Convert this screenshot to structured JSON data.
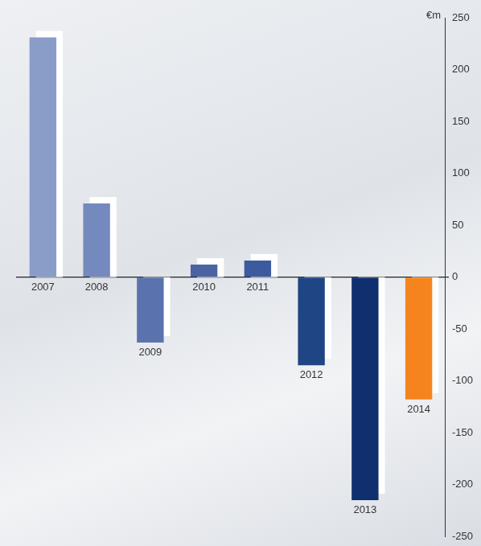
{
  "chart_data": {
    "type": "bar",
    "y_label": "€m",
    "categories": [
      "2007",
      "2008",
      "2009",
      "2010",
      "2011",
      "2012",
      "2013",
      "2014"
    ],
    "values": [
      231,
      71,
      -63,
      12,
      16,
      -85,
      -215,
      -118
    ],
    "colors": [
      "#8a9cc8",
      "#7489bd",
      "#5a73ae",
      "#4a64a3",
      "#3d5a9e",
      "#1f4585",
      "#0f2f6e",
      "#f5841f"
    ],
    "ylim": [
      -250,
      250
    ],
    "yticks": [
      -250,
      -200,
      -150,
      -100,
      -50,
      0,
      50,
      100,
      150,
      200,
      250
    ],
    "grid": false
  }
}
